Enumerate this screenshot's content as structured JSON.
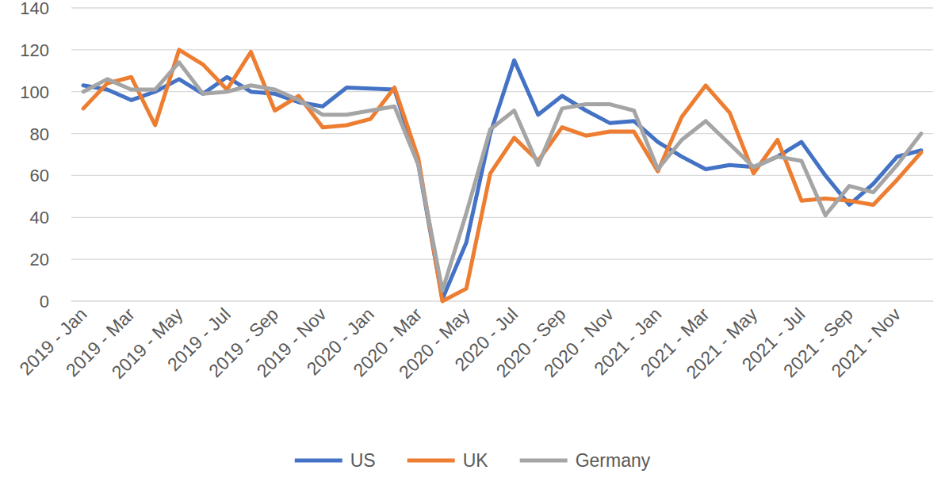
{
  "chart_data": {
    "type": "line",
    "categories": [
      "2019 - Jan",
      null,
      "2019 - Mar",
      null,
      "2019 - May",
      null,
      "2019 - Jul",
      null,
      "2019 - Sep",
      null,
      "2019 - Nov",
      null,
      "2020 - Jan",
      null,
      "2020 - Mar",
      null,
      "2020 - May",
      null,
      "2020 - Jul",
      null,
      "2020 - Sep",
      null,
      "2020 - Nov",
      null,
      "2021 - Jan",
      null,
      "2021 - Mar",
      null,
      "2021 - May",
      null,
      "2021 - Jul",
      null,
      "2021 - Sep",
      null,
      "2021 - Nov",
      null
    ],
    "series": [
      {
        "name": "US",
        "color": "#4472c4",
        "values": [
          103,
          101,
          96,
          100,
          106,
          99,
          107,
          100,
          99,
          95,
          93,
          102,
          101.5,
          101,
          65,
          1,
          28,
          80,
          115,
          89,
          98,
          91,
          85,
          86,
          76,
          69,
          63,
          65,
          64,
          69,
          76,
          60,
          46,
          56,
          69,
          72
        ]
      },
      {
        "name": "UK",
        "color": "#ed7d31",
        "values": [
          92,
          104,
          107,
          84,
          120,
          113,
          101,
          119,
          91,
          98,
          83,
          84,
          87,
          102,
          68,
          0,
          6,
          61,
          78,
          67,
          83,
          79,
          81,
          81,
          62,
          88,
          103,
          90,
          61,
          77,
          48,
          49,
          48,
          46,
          58,
          71
        ]
      },
      {
        "name": "Germany",
        "color": "#a5a5a5",
        "values": [
          100,
          106,
          101,
          101,
          114,
          99,
          100,
          103,
          101,
          96,
          89,
          89,
          91,
          93,
          65,
          5,
          42,
          82,
          91,
          65,
          92,
          94,
          94,
          91,
          63,
          77,
          86,
          75,
          64,
          69,
          67,
          41,
          55,
          52,
          65,
          80
        ]
      }
    ],
    "ylim": [
      0,
      140
    ],
    "yticks": [
      0,
      20,
      40,
      60,
      80,
      100,
      120,
      140
    ],
    "grid": true,
    "legend": "bottom"
  }
}
